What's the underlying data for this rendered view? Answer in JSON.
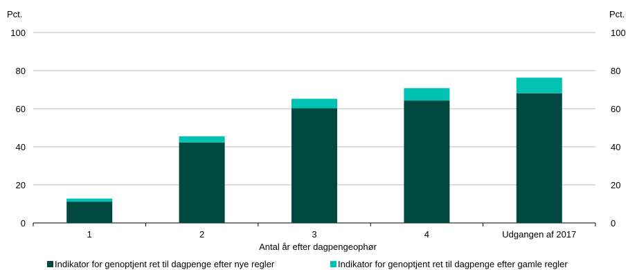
{
  "chart_data": {
    "type": "bar",
    "stacked": true,
    "categories": [
      "1",
      "2",
      "3",
      "4",
      "Udgangen af 2017"
    ],
    "series": [
      {
        "name": "Indikator for genoptjent ret til dagpenge efter nye regler",
        "color": "#004840",
        "values": [
          11.2,
          42.2,
          60.2,
          64.3,
          68.1
        ]
      },
      {
        "name": "Indikator for genoptjent ret til dagpenge efter gamle regler",
        "color": "#00c2b2",
        "values": [
          1.6,
          3.3,
          5.0,
          6.5,
          8.2
        ]
      }
    ],
    "xlabel": "Antal år efter dagpengeophør",
    "ylabel_left": "Pct.",
    "ylabel_right": "Pct.",
    "ylim": [
      0,
      100
    ],
    "yticks": [
      0,
      20,
      40,
      60,
      80,
      100
    ],
    "grid": true,
    "legend_position": "bottom"
  }
}
